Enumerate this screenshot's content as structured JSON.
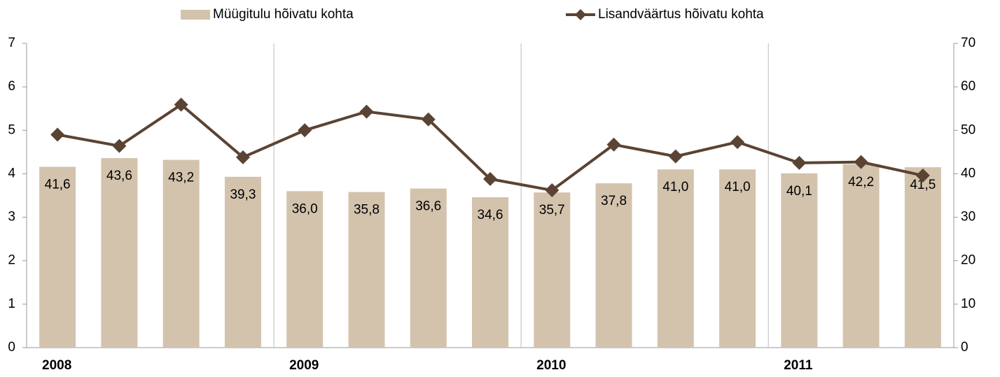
{
  "chart_data": {
    "type": "bar-line",
    "categories": [
      "2008",
      null,
      null,
      null,
      "2009",
      null,
      null,
      null,
      "2010",
      null,
      null,
      null,
      "2011",
      null,
      null
    ],
    "series": [
      {
        "name": "Müügitulu hõivatu kohta",
        "type": "bar",
        "axis": "y2",
        "color": "#d3c3ad",
        "values": [
          41.6,
          43.6,
          43.2,
          39.3,
          36.0,
          35.8,
          36.6,
          34.6,
          35.7,
          37.8,
          41.0,
          41.0,
          40.1,
          42.2,
          41.5
        ],
        "value_labels": [
          "41,6",
          "43,6",
          "43,2",
          "39,3",
          "36,0",
          "35,8",
          "36,6",
          "34,6",
          "35,7",
          "37,8",
          "41,0",
          "41,0",
          "40,1",
          "42,2",
          "41,5"
        ]
      },
      {
        "name": "Lisandväärtus hõivatu kohta",
        "type": "line",
        "axis": "y",
        "color": "#5b4333",
        "values": [
          4.9,
          4.64,
          5.59,
          4.38,
          5.0,
          5.43,
          5.25,
          3.88,
          3.62,
          4.67,
          4.4,
          4.73,
          4.25,
          4.27,
          3.96
        ]
      }
    ],
    "ylim": [
      0,
      7
    ],
    "yticks": [
      0,
      1,
      2,
      3,
      4,
      5,
      6,
      7
    ],
    "y2lim": [
      0,
      70
    ],
    "y2ticks": [
      0,
      10,
      20,
      30,
      40,
      50,
      60,
      70
    ],
    "legend": "top"
  }
}
